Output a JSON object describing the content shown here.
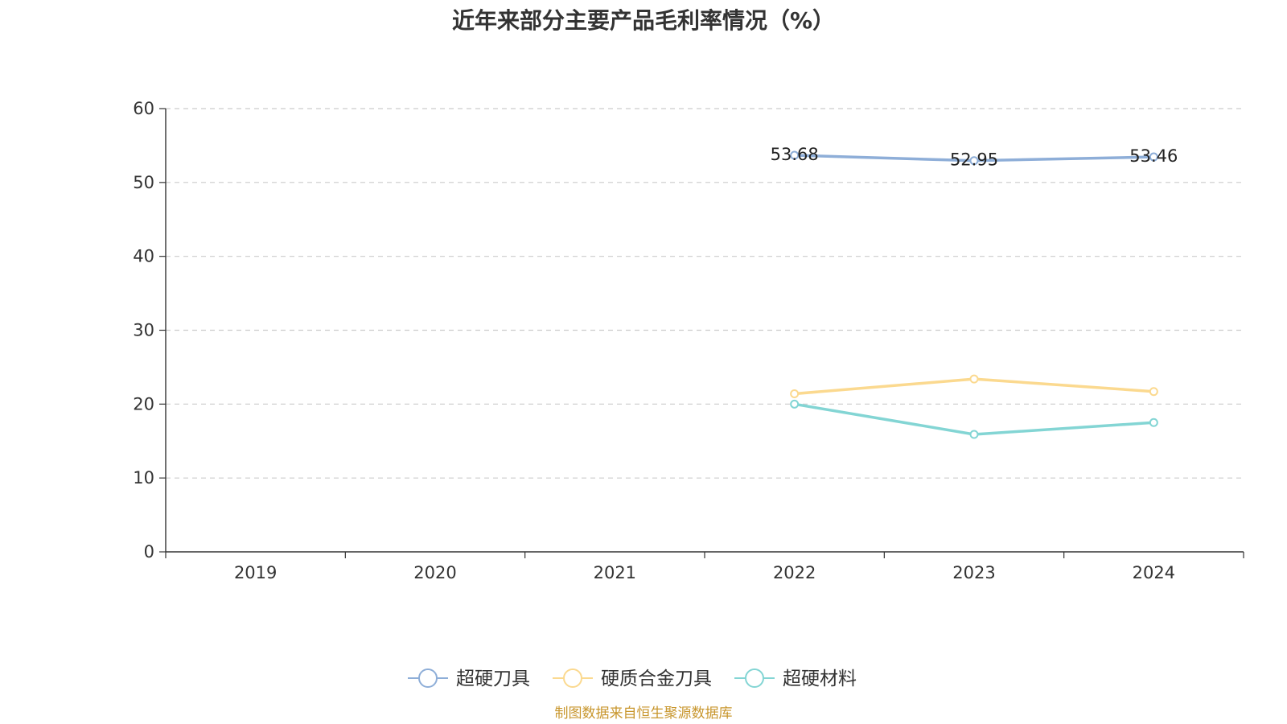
{
  "chart_data": {
    "type": "line",
    "title": "近年来部分主要产品毛利率情况（%）",
    "categories": [
      "2019",
      "2020",
      "2021",
      "2022",
      "2023",
      "2024"
    ],
    "ylim": [
      0,
      60
    ],
    "yticks": [
      0,
      10,
      20,
      30,
      40,
      50,
      60
    ],
    "grid": true,
    "legend_position": "bottom",
    "series": [
      {
        "name": "超硬刀具",
        "color": "#8eaed8",
        "show_labels": true,
        "values": [
          null,
          null,
          null,
          53.68,
          52.95,
          53.46
        ]
      },
      {
        "name": "硬质合金刀具",
        "color": "#fbd98f",
        "show_labels": false,
        "values": [
          null,
          null,
          null,
          21.4,
          23.4,
          21.7
        ]
      },
      {
        "name": "超硬材料",
        "color": "#83d5d4",
        "show_labels": false,
        "values": [
          null,
          null,
          null,
          20.0,
          15.9,
          17.5
        ]
      }
    ]
  },
  "source_note": "制图数据来自恒生聚源数据库"
}
